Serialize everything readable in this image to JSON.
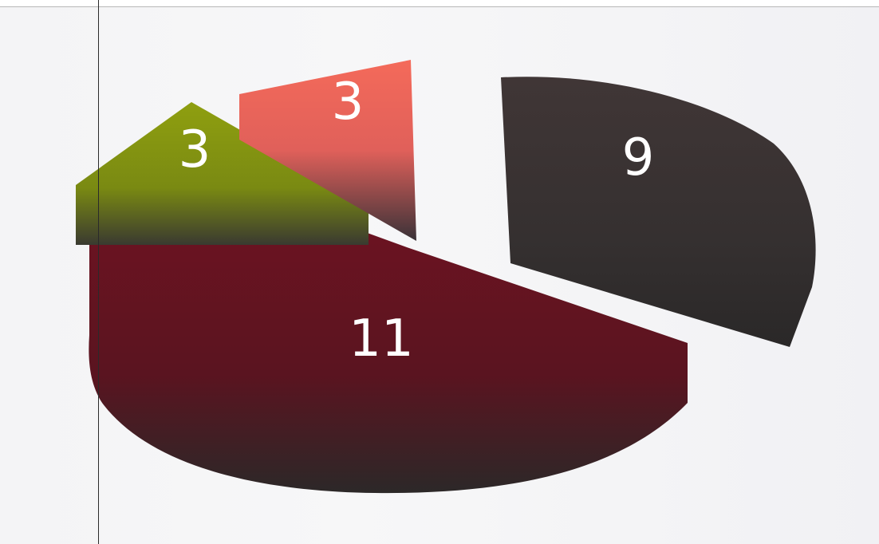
{
  "chart_data": {
    "type": "pie",
    "title": "",
    "values": [
      11,
      3,
      3,
      9
    ],
    "labels": [
      "11",
      "3",
      "3",
      "9"
    ],
    "colors": [
      "#6a1620",
      "#8a9a12",
      "#f07060",
      "#3a3232"
    ],
    "legend": "none"
  }
}
